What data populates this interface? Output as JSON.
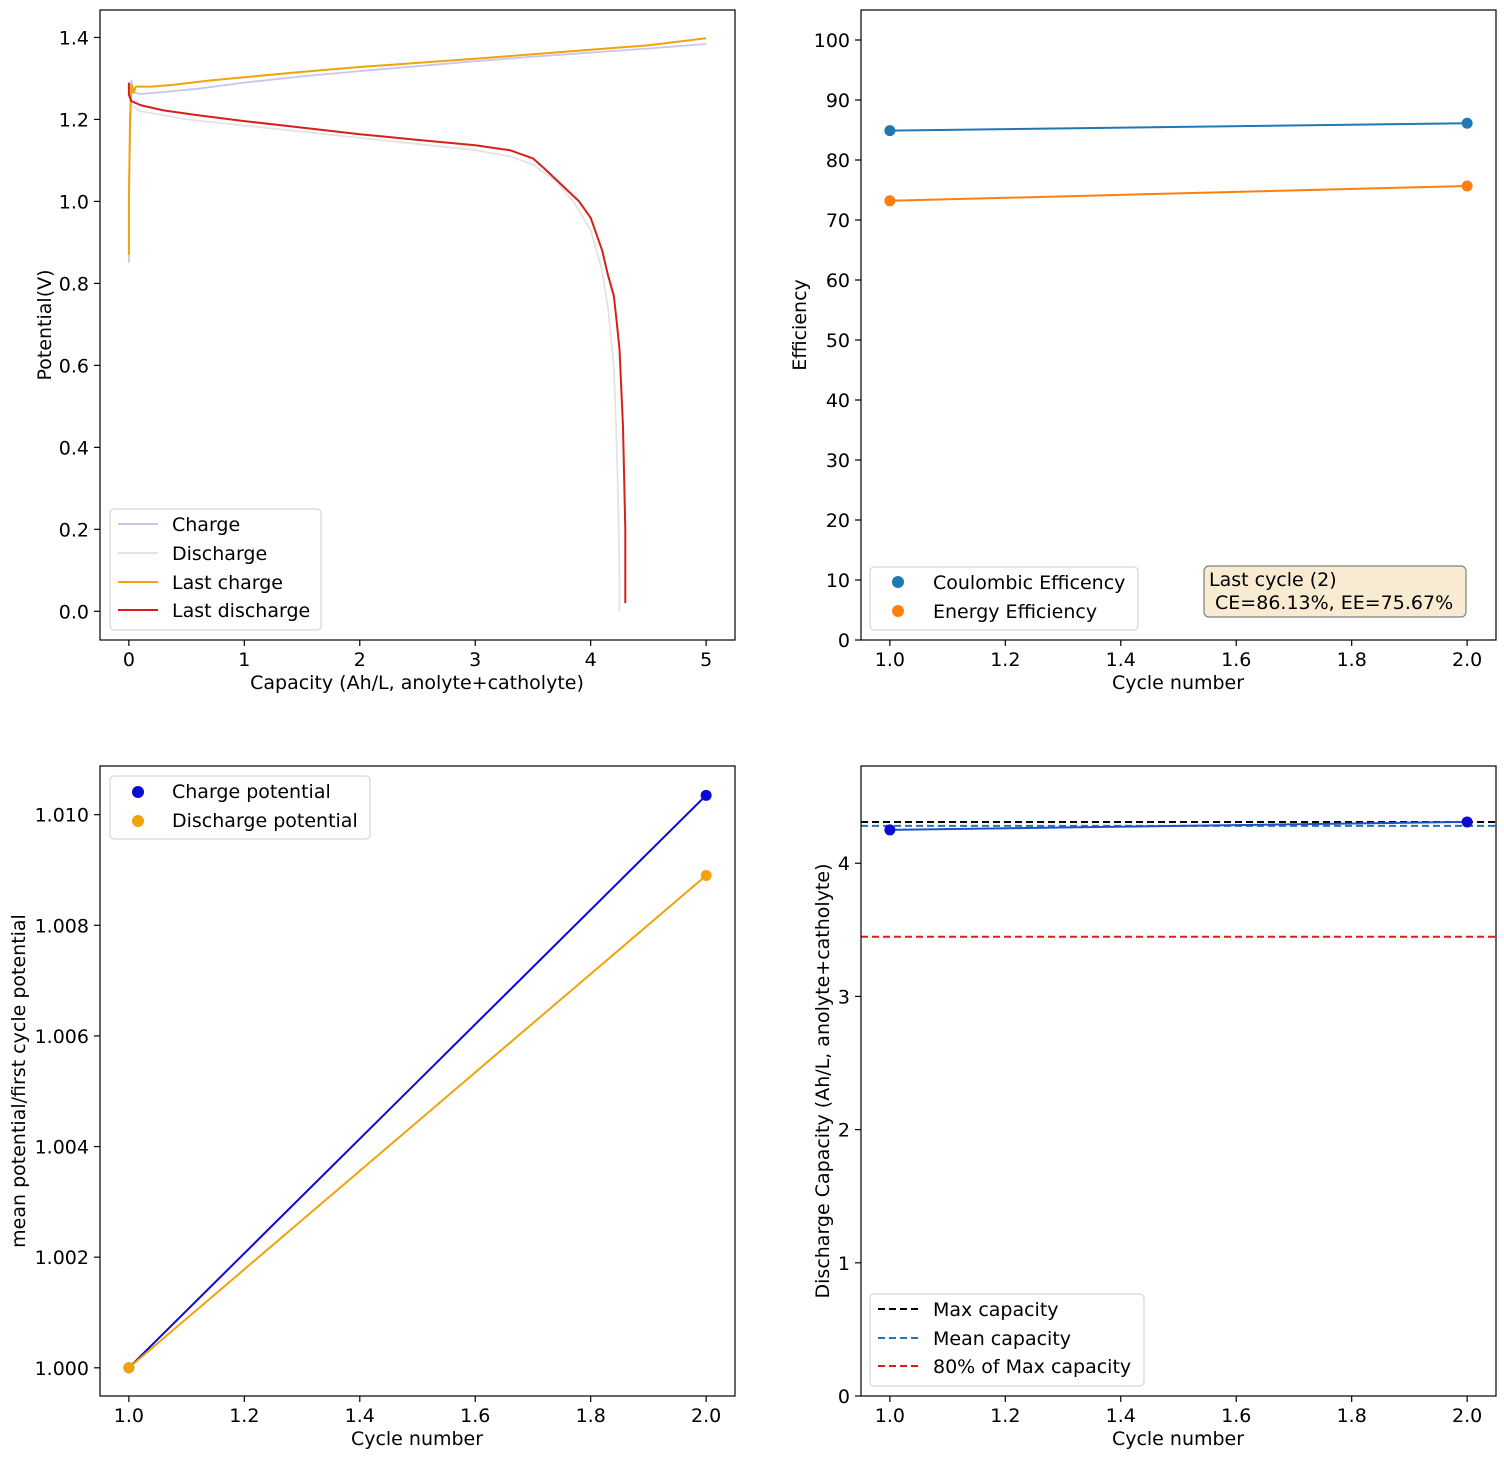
{
  "chart_data": [
    {
      "id": "voltage-profile",
      "type": "line",
      "xlabel": "Capacity (Ah/L, anolyte+catholyte)",
      "ylabel": "Potential(V)",
      "xlim": [
        -0.25,
        5.25
      ],
      "ylim": [
        -0.07,
        1.467
      ],
      "xticks": [
        0,
        1,
        2,
        3,
        4,
        5
      ],
      "yticks": [
        0.0,
        0.2,
        0.4,
        0.6,
        0.8,
        1.0,
        1.2,
        1.4
      ],
      "ytick_labels": [
        "0.0",
        "0.2",
        "0.4",
        "0.6",
        "0.8",
        "1.0",
        "1.2",
        "1.4"
      ],
      "legend_position": "lower-left",
      "series": [
        {
          "name": "Charge",
          "color": "#c8c6f0",
          "x": [
            0,
            0,
            0.01,
            0.02,
            0.02,
            0.05,
            0.1,
            0.3,
            0.6,
            1.0,
            1.5,
            2.0,
            2.5,
            3.0,
            3.5,
            4.0,
            4.5,
            5.0
          ],
          "y": [
            0.85,
            1.0,
            1.15,
            1.25,
            1.295,
            1.265,
            1.262,
            1.267,
            1.275,
            1.29,
            1.305,
            1.318,
            1.33,
            1.342,
            1.353,
            1.363,
            1.373,
            1.384
          ]
        },
        {
          "name": "Discharge",
          "color": "#e3e3e3",
          "x": [
            0,
            0.02,
            0.1,
            0.5,
            1.0,
            1.5,
            2.0,
            2.5,
            3.0,
            3.3,
            3.5,
            3.7,
            3.85,
            4.0,
            4.1,
            4.15,
            4.2,
            4.22,
            4.24,
            4.25,
            4.25
          ],
          "y": [
            1.27,
            1.235,
            1.22,
            1.2,
            1.185,
            1.17,
            1.155,
            1.14,
            1.125,
            1.11,
            1.09,
            1.05,
            1.0,
            0.93,
            0.83,
            0.74,
            0.6,
            0.45,
            0.25,
            0.08,
            0.0
          ]
        },
        {
          "name": "Last charge",
          "color": "#f0a30a",
          "x": [
            0,
            0,
            0.01,
            0.02,
            0.02,
            0.04,
            0.06,
            0.1,
            0.2,
            0.4,
            0.7,
            1.0,
            1.5,
            2.0,
            2.5,
            3.0,
            3.5,
            4.0,
            4.5,
            5.0
          ],
          "y": [
            0.87,
            1.0,
            1.2,
            1.27,
            1.285,
            1.265,
            1.28,
            1.28,
            1.28,
            1.285,
            1.295,
            1.303,
            1.316,
            1.328,
            1.338,
            1.348,
            1.359,
            1.37,
            1.381,
            1.398
          ]
        },
        {
          "name": "Last discharge",
          "color": "#d62018",
          "x": [
            0,
            0,
            0.02,
            0.1,
            0.3,
            0.6,
            1.0,
            1.5,
            2.0,
            2.5,
            3.0,
            3.3,
            3.5,
            3.6,
            3.75,
            3.9,
            4.0,
            4.1,
            4.15,
            4.2,
            4.22,
            4.25,
            4.28,
            4.3,
            4.3
          ],
          "y": [
            1.29,
            1.26,
            1.245,
            1.235,
            1.222,
            1.21,
            1.196,
            1.18,
            1.164,
            1.15,
            1.137,
            1.125,
            1.105,
            1.08,
            1.04,
            1.0,
            0.96,
            0.88,
            0.82,
            0.77,
            0.72,
            0.64,
            0.45,
            0.2,
            0.02
          ]
        }
      ]
    },
    {
      "id": "efficiency",
      "type": "line",
      "xlabel": "Cycle number",
      "ylabel": "Efficiency",
      "xlim": [
        0.95,
        2.05
      ],
      "ylim": [
        0,
        105
      ],
      "xticks": [
        1.0,
        1.2,
        1.4,
        1.6,
        1.8,
        2.0
      ],
      "xtick_labels": [
        "1.0",
        "1.2",
        "1.4",
        "1.6",
        "1.8",
        "2.0"
      ],
      "yticks": [
        0,
        10,
        20,
        30,
        40,
        50,
        60,
        70,
        80,
        90,
        100
      ],
      "legend_position": "lower-left",
      "annotation": {
        "line1": "Last cycle (2)",
        "line2": " CE=86.13%, EE=75.67%",
        "background": "#f8ebd2"
      },
      "series": [
        {
          "name": "Coulombic Efficency",
          "color": "#1f77b4",
          "x": [
            1,
            2
          ],
          "y": [
            84.9,
            86.13
          ]
        },
        {
          "name": "Energy Efficiency",
          "color": "#ff7f0e",
          "x": [
            1,
            2
          ],
          "y": [
            73.2,
            75.67
          ]
        }
      ]
    },
    {
      "id": "mean-potential",
      "type": "line",
      "xlabel": "Cycle number",
      "ylabel": "mean potential/first cycle potential",
      "xlim": [
        0.95,
        2.05
      ],
      "ylim": [
        0.99949,
        1.01088
      ],
      "xticks": [
        1.0,
        1.2,
        1.4,
        1.6,
        1.8,
        2.0
      ],
      "xtick_labels": [
        "1.0",
        "1.2",
        "1.4",
        "1.6",
        "1.8",
        "2.0"
      ],
      "yticks": [
        1.0,
        1.002,
        1.004,
        1.006,
        1.008,
        1.01
      ],
      "ytick_labels": [
        "1.000",
        "1.002",
        "1.004",
        "1.006",
        "1.008",
        "1.010"
      ],
      "legend_position": "upper-left",
      "series": [
        {
          "name": "Charge potential",
          "color": "#0a0ad2",
          "x": [
            1,
            2
          ],
          "y": [
            1.0,
            1.01035
          ]
        },
        {
          "name": "Discharge potential",
          "color": "#f0a30a",
          "x": [
            1,
            2
          ],
          "y": [
            1.0,
            1.0089
          ]
        }
      ]
    },
    {
      "id": "discharge-capacity",
      "type": "line",
      "xlabel": "Cycle number",
      "ylabel": "Discharge Capacity (Ah/L, anolyte+catholyte)",
      "xlim": [
        0.95,
        2.05
      ],
      "ylim": [
        0,
        4.73
      ],
      "xticks": [
        1.0,
        1.2,
        1.4,
        1.6,
        1.8,
        2.0
      ],
      "xtick_labels": [
        "1.0",
        "1.2",
        "1.4",
        "1.6",
        "1.8",
        "2.0"
      ],
      "yticks": [
        0,
        1,
        2,
        3,
        4
      ],
      "legend_position": "lower-left",
      "point_series": {
        "color": "#0a0ad2",
        "line_color": "#1f52c8",
        "x": [
          1,
          2
        ],
        "y": [
          4.25,
          4.31
        ]
      },
      "hlines": [
        {
          "name": "Max capacity",
          "color": "#000000",
          "y": 4.31
        },
        {
          "name": "Mean capacity",
          "color": "#1f77b4",
          "y": 4.28
        },
        {
          "name": "80% of Max capacity",
          "color": "#d62018",
          "y": 3.448
        }
      ]
    }
  ]
}
